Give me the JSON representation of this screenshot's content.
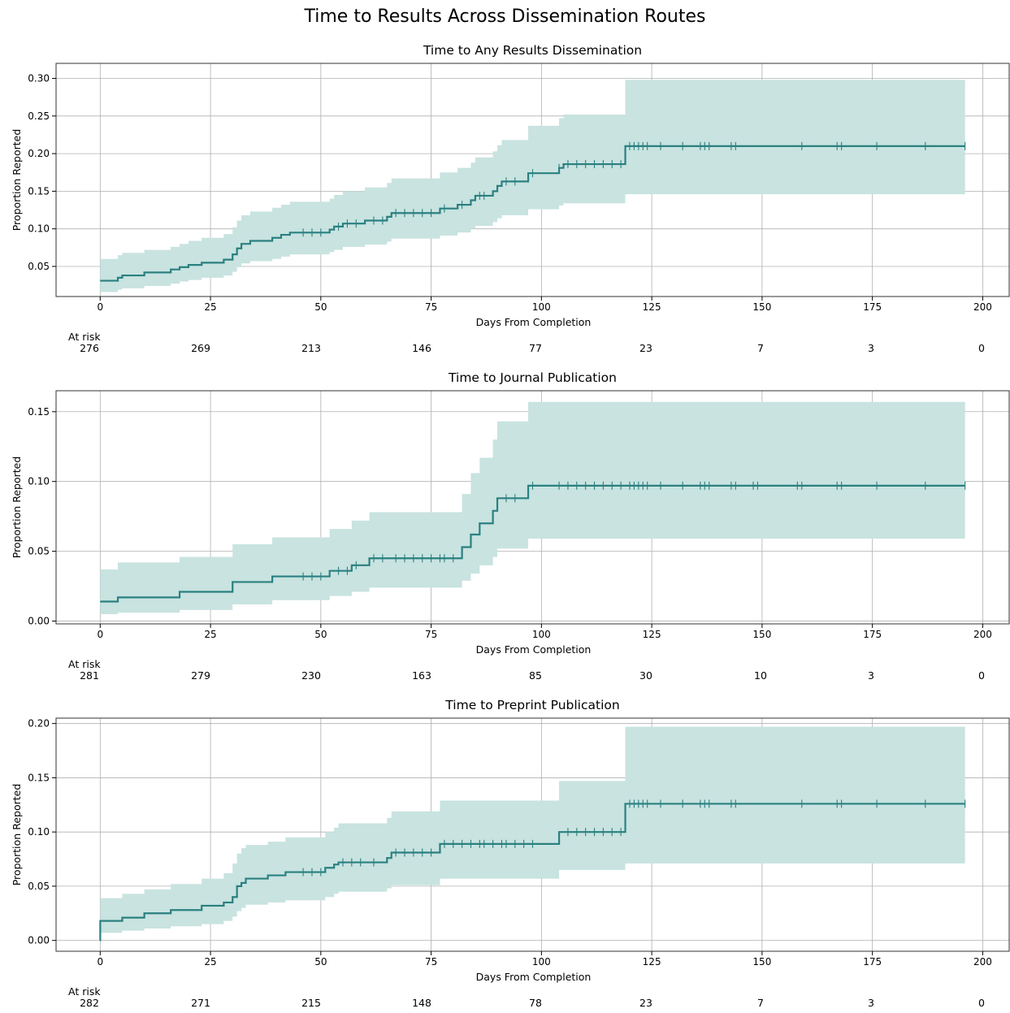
{
  "figure_title": "Time to Results Across Dissemination Routes",
  "colors": {
    "line": "#2a8080",
    "band": "#c8e3e0",
    "grid": "#b0b0b0",
    "axes": "#000000"
  },
  "chart_data": [
    {
      "type": "line",
      "title": "Time to Any Results Dissemination",
      "xlabel": "Days From Completion",
      "ylabel": "Proportion Reported",
      "xlim": [
        -10,
        206
      ],
      "ylim": [
        0.01,
        0.32
      ],
      "xticks": [
        0,
        25,
        50,
        75,
        100,
        125,
        150,
        175,
        200
      ],
      "yticks": [
        0.05,
        0.1,
        0.15,
        0.2,
        0.25,
        0.3
      ],
      "ytick_labels": [
        "0.05",
        "0.10",
        "0.15",
        "0.20",
        "0.25",
        "0.30"
      ],
      "grid": true,
      "series": [
        {
          "steps": [
            [
              0,
              0.031
            ],
            [
              4,
              0.035
            ],
            [
              5,
              0.038
            ],
            [
              10,
              0.042
            ],
            [
              16,
              0.046
            ],
            [
              18,
              0.049
            ],
            [
              20,
              0.052
            ],
            [
              23,
              0.055
            ],
            [
              28,
              0.059
            ],
            [
              30,
              0.066
            ],
            [
              31,
              0.074
            ],
            [
              32,
              0.08
            ],
            [
              34,
              0.084
            ],
            [
              39,
              0.088
            ],
            [
              41,
              0.092
            ],
            [
              43,
              0.095
            ],
            [
              52,
              0.099
            ],
            [
              53,
              0.103
            ],
            [
              55,
              0.107
            ],
            [
              60,
              0.111
            ],
            [
              65,
              0.116
            ],
            [
              66,
              0.121
            ],
            [
              77,
              0.127
            ],
            [
              81,
              0.132
            ],
            [
              84,
              0.138
            ],
            [
              85,
              0.144
            ],
            [
              89,
              0.15
            ],
            [
              90,
              0.157
            ],
            [
              91,
              0.163
            ],
            [
              97,
              0.174
            ],
            [
              104,
              0.181
            ],
            [
              105,
              0.186
            ],
            [
              119,
              0.21
            ],
            [
              196,
              0.21
            ]
          ],
          "ci_lower": [
            [
              0,
              0.016
            ],
            [
              4,
              0.019
            ],
            [
              5,
              0.021
            ],
            [
              10,
              0.024
            ],
            [
              16,
              0.027
            ],
            [
              18,
              0.03
            ],
            [
              20,
              0.032
            ],
            [
              23,
              0.035
            ],
            [
              28,
              0.038
            ],
            [
              30,
              0.043
            ],
            [
              31,
              0.049
            ],
            [
              32,
              0.054
            ],
            [
              34,
              0.057
            ],
            [
              39,
              0.06
            ],
            [
              41,
              0.063
            ],
            [
              43,
              0.066
            ],
            [
              52,
              0.069
            ],
            [
              53,
              0.072
            ],
            [
              55,
              0.076
            ],
            [
              60,
              0.079
            ],
            [
              65,
              0.083
            ],
            [
              66,
              0.087
            ],
            [
              77,
              0.091
            ],
            [
              81,
              0.095
            ],
            [
              84,
              0.1
            ],
            [
              85,
              0.104
            ],
            [
              89,
              0.109
            ],
            [
              90,
              0.114
            ],
            [
              91,
              0.118
            ],
            [
              97,
              0.126
            ],
            [
              104,
              0.131
            ],
            [
              105,
              0.134
            ],
            [
              119,
              0.146
            ],
            [
              196,
              0.146
            ]
          ],
          "ci_upper": [
            [
              0,
              0.06
            ],
            [
              4,
              0.065
            ],
            [
              5,
              0.068
            ],
            [
              10,
              0.072
            ],
            [
              16,
              0.076
            ],
            [
              18,
              0.08
            ],
            [
              20,
              0.084
            ],
            [
              23,
              0.088
            ],
            [
              28,
              0.093
            ],
            [
              30,
              0.102
            ],
            [
              31,
              0.111
            ],
            [
              32,
              0.118
            ],
            [
              34,
              0.123
            ],
            [
              39,
              0.128
            ],
            [
              41,
              0.132
            ],
            [
              43,
              0.136
            ],
            [
              52,
              0.14
            ],
            [
              53,
              0.145
            ],
            [
              55,
              0.15
            ],
            [
              60,
              0.155
            ],
            [
              65,
              0.161
            ],
            [
              66,
              0.167
            ],
            [
              77,
              0.175
            ],
            [
              81,
              0.181
            ],
            [
              84,
              0.188
            ],
            [
              85,
              0.195
            ],
            [
              89,
              0.203
            ],
            [
              90,
              0.211
            ],
            [
              91,
              0.218
            ],
            [
              97,
              0.237
            ],
            [
              104,
              0.247
            ],
            [
              105,
              0.252
            ],
            [
              119,
              0.298
            ],
            [
              196,
              0.298
            ]
          ],
          "censored": [
            46,
            48,
            50,
            54,
            56,
            58,
            62,
            64,
            67,
            69,
            71,
            73,
            75,
            78,
            82,
            86,
            87,
            92,
            94,
            98,
            104,
            106,
            108,
            110,
            112,
            114,
            116,
            118,
            120,
            121,
            122,
            123,
            124,
            127,
            132,
            136,
            137,
            138,
            143,
            144,
            159,
            167,
            168,
            176,
            187,
            196
          ]
        }
      ],
      "at_risk": {
        "label": "At risk",
        "values": [
          "276",
          "269",
          "213",
          "146",
          "77",
          "23",
          "7",
          "3",
          "0"
        ]
      }
    },
    {
      "type": "line",
      "title": "Time to Journal Publication",
      "xlabel": "Days From Completion",
      "ylabel": "Proportion Reported",
      "xlim": [
        -10,
        206
      ],
      "ylim": [
        -0.002,
        0.165
      ],
      "xticks": [
        0,
        25,
        50,
        75,
        100,
        125,
        150,
        175,
        200
      ],
      "yticks": [
        0.0,
        0.05,
        0.1,
        0.15
      ],
      "ytick_labels": [
        "0.00",
        "0.05",
        "0.10",
        "0.15"
      ],
      "grid": true,
      "series": [
        {
          "steps": [
            [
              0,
              0.014
            ],
            [
              4,
              0.017
            ],
            [
              18,
              0.021
            ],
            [
              30,
              0.028
            ],
            [
              39,
              0.032
            ],
            [
              52,
              0.036
            ],
            [
              57,
              0.04
            ],
            [
              61,
              0.045
            ],
            [
              82,
              0.053
            ],
            [
              84,
              0.062
            ],
            [
              86,
              0.07
            ],
            [
              89,
              0.079
            ],
            [
              90,
              0.088
            ],
            [
              97,
              0.097
            ],
            [
              196,
              0.097
            ]
          ],
          "ci_lower": [
            [
              0,
              0.005
            ],
            [
              4,
              0.006
            ],
            [
              18,
              0.008
            ],
            [
              30,
              0.012
            ],
            [
              39,
              0.015
            ],
            [
              52,
              0.018
            ],
            [
              57,
              0.021
            ],
            [
              61,
              0.024
            ],
            [
              82,
              0.029
            ],
            [
              84,
              0.034
            ],
            [
              86,
              0.04
            ],
            [
              89,
              0.046
            ],
            [
              90,
              0.052
            ],
            [
              97,
              0.059
            ],
            [
              196,
              0.059
            ]
          ],
          "ci_upper": [
            [
              0,
              0.037
            ],
            [
              4,
              0.042
            ],
            [
              18,
              0.046
            ],
            [
              30,
              0.055
            ],
            [
              39,
              0.06
            ],
            [
              52,
              0.066
            ],
            [
              57,
              0.072
            ],
            [
              61,
              0.078
            ],
            [
              82,
              0.091
            ],
            [
              84,
              0.106
            ],
            [
              86,
              0.117
            ],
            [
              89,
              0.13
            ],
            [
              90,
              0.143
            ],
            [
              97,
              0.157
            ],
            [
              196,
              0.157
            ]
          ],
          "censored": [
            46,
            48,
            50,
            54,
            56,
            58,
            62,
            64,
            67,
            69,
            71,
            73,
            75,
            77,
            78,
            80,
            92,
            94,
            98,
            104,
            106,
            108,
            110,
            112,
            114,
            116,
            118,
            120,
            121,
            122,
            123,
            124,
            127,
            132,
            136,
            137,
            138,
            143,
            144,
            148,
            149,
            158,
            159,
            167,
            168,
            176,
            187,
            196
          ]
        }
      ],
      "at_risk": {
        "label": "At risk",
        "values": [
          "281",
          "279",
          "230",
          "163",
          "85",
          "30",
          "10",
          "3",
          "0"
        ]
      }
    },
    {
      "type": "line",
      "title": "Time to Preprint Publication",
      "xlabel": "Days From Completion",
      "ylabel": "Proportion Reported",
      "xlim": [
        -10,
        206
      ],
      "ylim": [
        -0.01,
        0.205
      ],
      "xticks": [
        0,
        25,
        50,
        75,
        100,
        125,
        150,
        175,
        200
      ],
      "yticks": [
        0.0,
        0.05,
        0.1,
        0.15,
        0.2
      ],
      "ytick_labels": [
        "0.00",
        "0.05",
        "0.10",
        "0.15",
        "0.20"
      ],
      "grid": true,
      "series": [
        {
          "steps": [
            [
              0,
              0.0
            ],
            [
              0.01,
              0.018
            ],
            [
              5,
              0.021
            ],
            [
              10,
              0.025
            ],
            [
              16,
              0.028
            ],
            [
              23,
              0.032
            ],
            [
              28,
              0.035
            ],
            [
              30,
              0.04
            ],
            [
              31,
              0.05
            ],
            [
              32,
              0.053
            ],
            [
              33,
              0.057
            ],
            [
              38,
              0.06
            ],
            [
              42,
              0.063
            ],
            [
              51,
              0.067
            ],
            [
              53,
              0.07
            ],
            [
              54,
              0.072
            ],
            [
              65,
              0.076
            ],
            [
              66,
              0.081
            ],
            [
              77,
              0.089
            ],
            [
              104,
              0.1
            ],
            [
              119,
              0.126
            ],
            [
              196,
              0.126
            ]
          ],
          "ci_lower": [
            [
              0,
              0.0
            ],
            [
              0.01,
              0.007
            ],
            [
              5,
              0.009
            ],
            [
              10,
              0.011
            ],
            [
              16,
              0.013
            ],
            [
              23,
              0.015
            ],
            [
              28,
              0.018
            ],
            [
              30,
              0.022
            ],
            [
              31,
              0.027
            ],
            [
              32,
              0.03
            ],
            [
              33,
              0.033
            ],
            [
              38,
              0.035
            ],
            [
              42,
              0.037
            ],
            [
              51,
              0.04
            ],
            [
              53,
              0.043
            ],
            [
              54,
              0.045
            ],
            [
              65,
              0.048
            ],
            [
              66,
              0.051
            ],
            [
              77,
              0.057
            ],
            [
              104,
              0.065
            ],
            [
              119,
              0.071
            ],
            [
              196,
              0.071
            ]
          ],
          "ci_upper": [
            [
              0,
              0.0
            ],
            [
              0.01,
              0.039
            ],
            [
              5,
              0.043
            ],
            [
              10,
              0.047
            ],
            [
              16,
              0.052
            ],
            [
              23,
              0.057
            ],
            [
              28,
              0.062
            ],
            [
              30,
              0.071
            ],
            [
              31,
              0.08
            ],
            [
              32,
              0.085
            ],
            [
              33,
              0.088
            ],
            [
              38,
              0.091
            ],
            [
              42,
              0.095
            ],
            [
              51,
              0.1
            ],
            [
              53,
              0.104
            ],
            [
              54,
              0.108
            ],
            [
              65,
              0.113
            ],
            [
              66,
              0.119
            ],
            [
              77,
              0.129
            ],
            [
              104,
              0.147
            ],
            [
              119,
              0.197
            ],
            [
              196,
              0.197
            ]
          ],
          "censored": [
            46,
            48,
            50,
            55,
            57,
            59,
            62,
            67,
            69,
            71,
            73,
            75,
            78,
            80,
            82,
            84,
            86,
            87,
            89,
            91,
            92,
            94,
            96,
            98,
            106,
            108,
            110,
            112,
            114,
            116,
            118,
            120,
            121,
            122,
            123,
            124,
            127,
            132,
            136,
            137,
            138,
            143,
            144,
            159,
            167,
            168,
            176,
            187,
            196
          ]
        }
      ],
      "at_risk": {
        "label": "At risk",
        "values": [
          "282",
          "271",
          "215",
          "148",
          "78",
          "23",
          "7",
          "3",
          "0"
        ]
      }
    }
  ]
}
